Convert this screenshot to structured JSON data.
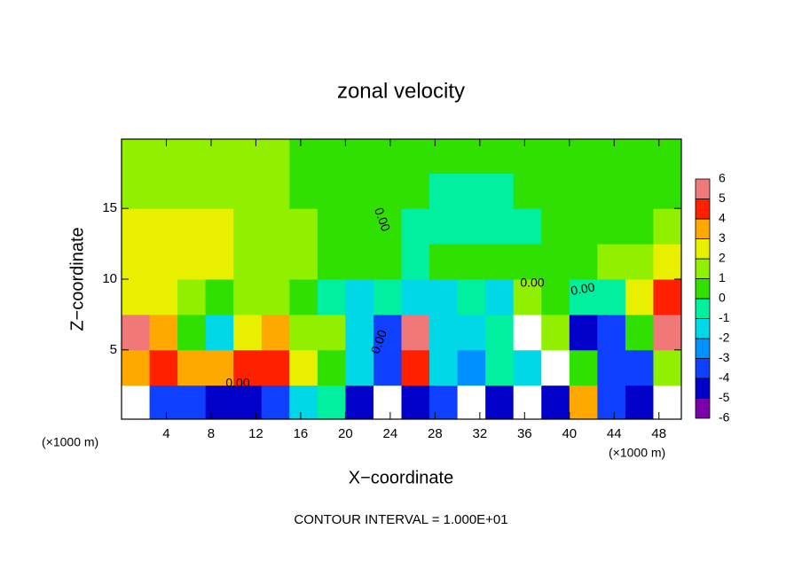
{
  "chart_data": {
    "type": "contour",
    "title": "zonal velocity",
    "x_label": "X−coordinate",
    "y_label": "Z−coordinate",
    "x_unit_label": "(×1000 m)",
    "y_unit_label": "(×1000 m)",
    "footer": "CONTOUR INTERVAL = 1.000E+01",
    "contour_labels": [
      "0.00",
      "0.00",
      "0.00",
      "0.00",
      "0.00"
    ],
    "xlim": [
      0,
      50
    ],
    "ylim": [
      0.1,
      19.9
    ],
    "xticks": [
      4,
      8,
      12,
      16,
      20,
      24,
      28,
      32,
      36,
      40,
      44,
      48
    ],
    "yticks": [
      5,
      10,
      15
    ],
    "x_bins": [
      0,
      2.5,
      5,
      7.5,
      10,
      12.5,
      15,
      17.5,
      20,
      22.5,
      25,
      27.5,
      30,
      32.5,
      35,
      37.5,
      40,
      42.5,
      45,
      47.5,
      50
    ],
    "y_bins": [
      0,
      2.5,
      5,
      7.5,
      10,
      12.5,
      15,
      17.5,
      20
    ],
    "z": [
      [
        7,
        -4,
        -4,
        -5,
        -5,
        -4,
        -2,
        -1,
        -5,
        7,
        -5,
        -4,
        7,
        -5,
        7,
        -5,
        3,
        -4,
        -5,
        7
      ],
      [
        3,
        4,
        3,
        3,
        4,
        4,
        2,
        0,
        -2,
        -4,
        4,
        -2,
        -3,
        -1,
        -2,
        7,
        0,
        -4,
        -4,
        1
      ],
      [
        6,
        3,
        0,
        -2,
        2,
        3,
        1,
        1,
        -2,
        -4,
        6,
        -2,
        -2,
        -1,
        7,
        1,
        -5,
        -4,
        0,
        5
      ],
      [
        2,
        2,
        1,
        0,
        1,
        1,
        0,
        -1,
        -2,
        -1,
        -2,
        -2,
        -1,
        -2,
        1,
        0,
        -1,
        -1,
        2,
        4
      ],
      [
        2,
        2,
        2,
        2,
        1,
        1,
        1,
        0,
        0,
        0,
        -1,
        0,
        0,
        0,
        0,
        0,
        0,
        1,
        1,
        2
      ],
      [
        2,
        2,
        2,
        2,
        1,
        1,
        1,
        0,
        0,
        0,
        -1,
        -1,
        -1,
        -1,
        -1,
        0,
        0,
        0,
        0,
        1
      ],
      [
        1,
        1,
        1,
        1,
        1,
        1,
        0,
        0,
        0,
        0,
        0,
        -1,
        -1,
        -1,
        0,
        0,
        0,
        0,
        0,
        0
      ],
      [
        1,
        1,
        1,
        1,
        1,
        1,
        0,
        0,
        0,
        0,
        0,
        0,
        0,
        0,
        0,
        0,
        0,
        0,
        0,
        0
      ]
    ],
    "colorbar_levels": [
      -6,
      -5,
      -4,
      -3,
      -2,
      -1,
      0,
      1,
      2,
      3,
      4,
      5,
      6
    ],
    "colorbar_colors": [
      "#7a00a8",
      "#0000c8",
      "#1040ff",
      "#0090ff",
      "#00d8e8",
      "#00f0a0",
      "#30e000",
      "#90f000",
      "#e8f000",
      "#ffa800",
      "#ff2000",
      "#f07878"
    ],
    "above_color": "#ffffff"
  }
}
